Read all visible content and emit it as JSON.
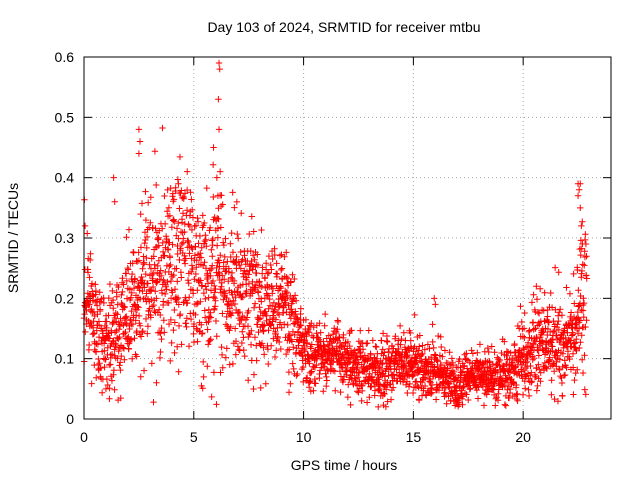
{
  "chart_data": {
    "type": "scatter",
    "title": "Day 103 of 2024, SRMTID for receiver mtbu",
    "xlabel": "GPS time / hours",
    "ylabel": "SRMTID / TECUs",
    "xlim": [
      0,
      24
    ],
    "ylim": [
      0,
      0.6
    ],
    "xticks": [
      0,
      5,
      10,
      15,
      20
    ],
    "yticks": [
      0,
      0.1,
      0.2,
      0.3,
      0.4,
      0.5,
      0.6
    ],
    "grid": true,
    "marker": "+",
    "color": "#ff0000",
    "series": [
      {
        "name": "mtbu",
        "time_range_hours": [
          0,
          22.9
        ],
        "trend_x": [
          0.0,
          0.5,
          1.0,
          1.5,
          2.0,
          2.5,
          3.0,
          3.5,
          4.0,
          4.5,
          5.0,
          5.5,
          6.0,
          6.5,
          7.0,
          7.5,
          8.0,
          8.5,
          9.0,
          9.5,
          10.0,
          10.5,
          11.0,
          11.5,
          12.0,
          12.5,
          13.0,
          13.5,
          14.0,
          14.5,
          15.0,
          15.5,
          16.0,
          16.5,
          17.0,
          17.5,
          18.0,
          18.5,
          19.0,
          19.5,
          20.0,
          20.5,
          21.0,
          21.5,
          22.0,
          22.5,
          22.9
        ],
        "trend_y": [
          0.2,
          0.16,
          0.12,
          0.15,
          0.17,
          0.2,
          0.23,
          0.25,
          0.27,
          0.26,
          0.25,
          0.23,
          0.24,
          0.22,
          0.21,
          0.2,
          0.19,
          0.2,
          0.19,
          0.15,
          0.11,
          0.1,
          0.12,
          0.11,
          0.09,
          0.09,
          0.08,
          0.08,
          0.09,
          0.09,
          0.09,
          0.08,
          0.08,
          0.07,
          0.06,
          0.07,
          0.08,
          0.07,
          0.07,
          0.08,
          0.1,
          0.12,
          0.13,
          0.12,
          0.13,
          0.17,
          0.22
        ],
        "spread_y": [
          0.06,
          0.05,
          0.04,
          0.05,
          0.06,
          0.06,
          0.07,
          0.07,
          0.08,
          0.08,
          0.08,
          0.08,
          0.08,
          0.06,
          0.06,
          0.06,
          0.05,
          0.05,
          0.05,
          0.04,
          0.03,
          0.03,
          0.03,
          0.03,
          0.025,
          0.025,
          0.025,
          0.025,
          0.025,
          0.025,
          0.025,
          0.025,
          0.025,
          0.02,
          0.02,
          0.02,
          0.02,
          0.02,
          0.02,
          0.025,
          0.03,
          0.04,
          0.04,
          0.04,
          0.04,
          0.05,
          0.07
        ],
        "outliers": [
          {
            "x": 0.05,
            "y": 0.32
          },
          {
            "x": 1.35,
            "y": 0.4
          },
          {
            "x": 1.4,
            "y": 0.36
          },
          {
            "x": 2.5,
            "y": 0.48
          },
          {
            "x": 2.55,
            "y": 0.46
          },
          {
            "x": 2.5,
            "y": 0.44
          },
          {
            "x": 4.7,
            "y": 0.41
          },
          {
            "x": 4.3,
            "y": 0.39
          },
          {
            "x": 5.9,
            "y": 0.45
          },
          {
            "x": 6.05,
            "y": 0.4
          },
          {
            "x": 6.12,
            "y": 0.53
          },
          {
            "x": 6.15,
            "y": 0.59
          },
          {
            "x": 6.18,
            "y": 0.58
          },
          {
            "x": 6.15,
            "y": 0.48
          },
          {
            "x": 6.2,
            "y": 0.41
          },
          {
            "x": 6.1,
            "y": 0.37
          },
          {
            "x": 15.95,
            "y": 0.2
          },
          {
            "x": 16.0,
            "y": 0.19
          },
          {
            "x": 20.6,
            "y": 0.22
          },
          {
            "x": 22.5,
            "y": 0.39
          },
          {
            "x": 22.55,
            "y": 0.38
          },
          {
            "x": 22.6,
            "y": 0.35
          },
          {
            "x": 22.65,
            "y": 0.32
          },
          {
            "x": 22.7,
            "y": 0.29
          },
          {
            "x": 22.5,
            "y": 0.37
          },
          {
            "x": 22.6,
            "y": 0.39
          },
          {
            "x": 16.7,
            "y": 0.03
          },
          {
            "x": 13.4,
            "y": 0.02
          },
          {
            "x": 1.0,
            "y": 0.05
          },
          {
            "x": 3.3,
            "y": 0.06
          }
        ]
      }
    ]
  }
}
